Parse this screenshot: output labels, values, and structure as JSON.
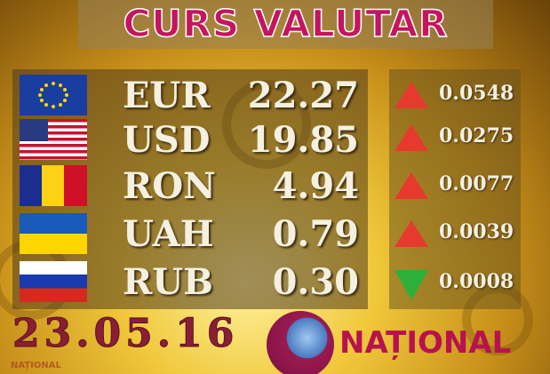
{
  "title": "CURS VALUTAR",
  "rates": [
    {
      "code": "EUR",
      "rate": "22.27",
      "change": "0.0548",
      "direction": "up",
      "flag": "eu-flag"
    },
    {
      "code": "USD",
      "rate": "19.85",
      "change": "0.0275",
      "direction": "up",
      "flag": "us-flag"
    },
    {
      "code": "RON",
      "rate": "4.94",
      "change": "0.0077",
      "direction": "up",
      "flag": "romania-flag"
    },
    {
      "code": "UAH",
      "rate": "0.79",
      "change": "0.0039",
      "direction": "up",
      "flag": "ukraine-flag"
    },
    {
      "code": "RUB",
      "rate": "0.30",
      "change": "0.0008",
      "direction": "down",
      "flag": "russia-flag"
    }
  ],
  "date": "23.05.16",
  "brand": "NAȚIONAL",
  "watermark": "NAȚIONAL",
  "colors": {
    "up": "#e63a2e",
    "down": "#2cb03a",
    "title": "#c4155e",
    "date": "#8a1e35"
  }
}
